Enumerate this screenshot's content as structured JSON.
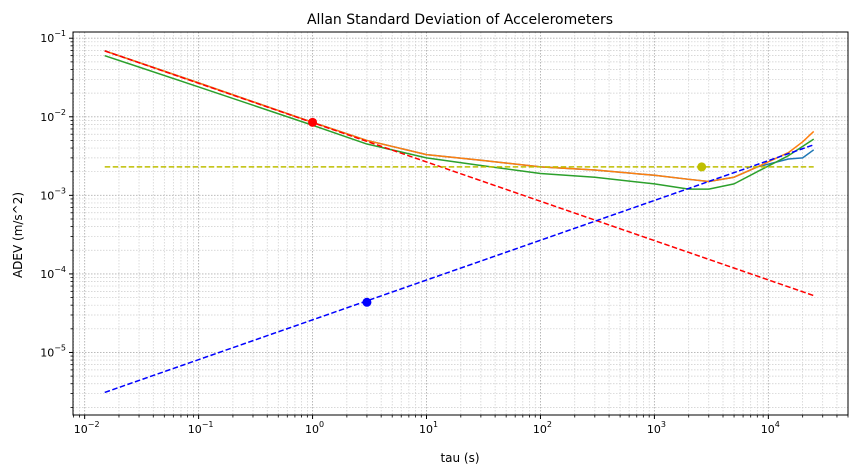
{
  "chart_data": {
    "type": "line",
    "title": "Allan Standard Deviation of Accelerometers",
    "xlabel": "tau (s)",
    "ylabel": "ADEV (m/s^2)",
    "xscale": "log",
    "yscale": "log",
    "xlim": [
      0.0079,
      50000
    ],
    "ylim": [
      1.6e-06,
      0.12
    ],
    "grid": "major and minor, dotted",
    "x_ticks": [
      {
        "value": 0.01,
        "base": "10",
        "exp": "−2"
      },
      {
        "value": 0.1,
        "base": "10",
        "exp": "−1"
      },
      {
        "value": 1,
        "base": "10",
        "exp": "0"
      },
      {
        "value": 10,
        "base": "10",
        "exp": "1"
      },
      {
        "value": 100,
        "base": "10",
        "exp": "2"
      },
      {
        "value": 1000,
        "base": "10",
        "exp": "3"
      },
      {
        "value": 10000,
        "base": "10",
        "exp": "4"
      }
    ],
    "y_ticks": [
      {
        "value": 1e-05,
        "base": "10",
        "exp": "−5"
      },
      {
        "value": 0.0001,
        "base": "10",
        "exp": "−4"
      },
      {
        "value": 0.001,
        "base": "10",
        "exp": "−3"
      },
      {
        "value": 0.01,
        "base": "10",
        "exp": "−2"
      },
      {
        "value": 0.1,
        "base": "10",
        "exp": "−1"
      }
    ],
    "series": [
      {
        "color": "#1f77b4",
        "style": "solid",
        "points": [
          [
            0.015,
            0.069
          ],
          [
            0.1,
            0.027
          ],
          [
            1,
            0.0085
          ],
          [
            3,
            0.005
          ],
          [
            10,
            0.0033
          ],
          [
            30,
            0.0028
          ],
          [
            100,
            0.0023
          ],
          [
            300,
            0.0021
          ],
          [
            1000,
            0.0018
          ],
          [
            2000,
            0.0016
          ],
          [
            3000,
            0.0015
          ],
          [
            5000,
            0.0017
          ],
          [
            8000,
            0.0023
          ],
          [
            15000,
            0.0029
          ],
          [
            20000,
            0.003
          ],
          [
            25000,
            0.0038
          ]
        ]
      },
      {
        "color": "#ff7f0e",
        "style": "solid",
        "points": [
          [
            0.015,
            0.069
          ],
          [
            0.1,
            0.027
          ],
          [
            1,
            0.0085
          ],
          [
            3,
            0.005
          ],
          [
            10,
            0.0033
          ],
          [
            30,
            0.0028
          ],
          [
            100,
            0.0023
          ],
          [
            300,
            0.0021
          ],
          [
            1000,
            0.0018
          ],
          [
            2000,
            0.0016
          ],
          [
            3000,
            0.0015
          ],
          [
            5000,
            0.0017
          ],
          [
            8000,
            0.0023
          ],
          [
            15000,
            0.0035
          ],
          [
            20000,
            0.0048
          ],
          [
            25000,
            0.0065
          ]
        ]
      },
      {
        "color": "#2ca02c",
        "style": "solid",
        "points": [
          [
            0.015,
            0.06
          ],
          [
            0.1,
            0.024
          ],
          [
            1,
            0.0078
          ],
          [
            3,
            0.0045
          ],
          [
            10,
            0.003
          ],
          [
            30,
            0.0024
          ],
          [
            100,
            0.0019
          ],
          [
            300,
            0.0017
          ],
          [
            1000,
            0.0014
          ],
          [
            2000,
            0.0012
          ],
          [
            3000,
            0.0012
          ],
          [
            5000,
            0.0014
          ],
          [
            8000,
            0.002
          ],
          [
            15000,
            0.0032
          ],
          [
            20000,
            0.0042
          ],
          [
            25000,
            0.0052
          ]
        ]
      },
      {
        "color": "#ff0000",
        "style": "dashed",
        "points": [
          [
            0.015,
            0.069
          ],
          [
            25000,
            5.3e-05
          ]
        ]
      },
      {
        "color": "#0000ff",
        "style": "dashed",
        "points": [
          [
            0.015,
            3.1e-06
          ],
          [
            25000,
            0.0044
          ]
        ]
      },
      {
        "color": "#bfbf00",
        "style": "dashed",
        "points": [
          [
            0.015,
            0.0023
          ],
          [
            25000,
            0.0023
          ]
        ]
      }
    ],
    "markers": [
      {
        "color": "#ff0000",
        "x": 1,
        "y": 0.0085
      },
      {
        "color": "#0000ff",
        "x": 3,
        "y": 4.35e-05
      },
      {
        "color": "#bfbf00",
        "x": 2600,
        "y": 0.0023
      }
    ]
  }
}
